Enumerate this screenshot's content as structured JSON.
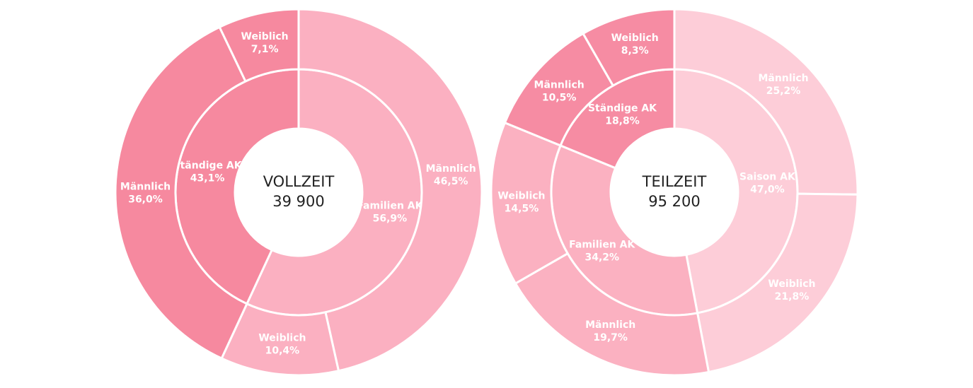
{
  "chart_data": [
    {
      "type": "sunburst",
      "center_title": "VOLLZEIT",
      "center_label": "39 900",
      "inner": {
        "categories": [
          "Familien AK",
          "Ständige AK"
        ],
        "values": [
          56.9,
          43.1
        ],
        "value_labels": [
          "56,9%",
          "43,1%"
        ],
        "colors": [
          "#fbb0c1",
          "#f6899f"
        ]
      },
      "outer": {
        "categories": [
          "Männlich",
          "Weiblich",
          "Männlich",
          "Weiblich"
        ],
        "values": [
          46.5,
          10.4,
          36.0,
          7.1
        ],
        "value_labels": [
          "46,5%",
          "10,4%",
          "36,0%",
          "7,1%"
        ],
        "parents": [
          0,
          0,
          1,
          1
        ]
      }
    },
    {
      "type": "sunburst",
      "center_title": "TEILZEIT",
      "center_label": "95 200",
      "inner": {
        "categories": [
          "Saison AK",
          "Familien AK",
          "Ständige AK"
        ],
        "values": [
          47.0,
          34.2,
          18.8
        ],
        "value_labels": [
          "47,0%",
          "34,2%",
          "18,8%"
        ],
        "colors": [
          "#fdcdd8",
          "#fbb1c1",
          "#f68ca3"
        ]
      },
      "outer": {
        "categories": [
          "Männlich",
          "Weiblich",
          "Männlich",
          "Weiblich",
          "Männlich",
          "Weiblich"
        ],
        "values": [
          25.2,
          21.8,
          19.7,
          14.5,
          10.5,
          8.3
        ],
        "value_labels": [
          "25,2%",
          "21,8%",
          "19,7%",
          "14,5%",
          "10,5%",
          "8,3%"
        ],
        "parents": [
          0,
          0,
          1,
          1,
          2,
          2
        ]
      }
    }
  ]
}
